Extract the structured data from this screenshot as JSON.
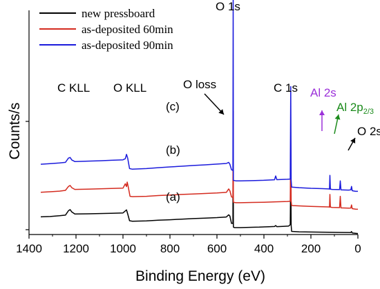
{
  "chart_data": {
    "type": "line",
    "title": "",
    "xlabel": "Binding Energy (eV)",
    "ylabel": "Counts/s",
    "xlim": [
      1400,
      0
    ],
    "x_reversed": true,
    "x_ticks": [
      1400,
      1200,
      1000,
      800,
      600,
      400,
      200,
      0
    ],
    "y_ticks_labeled": false,
    "grid": false,
    "legend_position": "top-left",
    "series": [
      {
        "name": "new pressboard",
        "color": "#000000",
        "tag": "(a)",
        "points": [
          [
            1350,
            0.143
          ],
          [
            1310,
            0.146
          ],
          [
            1270,
            0.152
          ],
          [
            1245,
            0.157
          ],
          [
            1232,
            0.193
          ],
          [
            1225,
            0.202
          ],
          [
            1218,
            0.183
          ],
          [
            1205,
            0.166
          ],
          [
            1150,
            0.168
          ],
          [
            1100,
            0.17
          ],
          [
            1050,
            0.172
          ],
          [
            1000,
            0.175
          ],
          [
            985,
            0.2
          ],
          [
            980,
            0.168
          ],
          [
            972,
            0.112
          ],
          [
            960,
            0.108
          ],
          [
            900,
            0.111
          ],
          [
            850,
            0.116
          ],
          [
            800,
            0.12
          ],
          [
            750,
            0.125
          ],
          [
            700,
            0.129
          ],
          [
            650,
            0.133
          ],
          [
            600,
            0.137
          ],
          [
            560,
            0.142
          ],
          [
            550,
            0.16
          ],
          [
            545,
            0.15
          ],
          [
            538,
            0.09
          ],
          [
            532,
            0.09
          ],
          [
            531,
            1.0
          ],
          [
            530,
            0.06
          ],
          [
            525,
            0.056
          ],
          [
            500,
            0.056
          ],
          [
            450,
            0.059
          ],
          [
            420,
            0.06
          ],
          [
            380,
            0.063
          ],
          [
            355,
            0.065
          ],
          [
            350,
            0.073
          ],
          [
            345,
            0.064
          ],
          [
            320,
            0.066
          ],
          [
            295,
            0.068
          ],
          [
            288,
            0.08
          ],
          [
            286,
            0.52
          ],
          [
            284,
            0.075
          ],
          [
            282,
            0.025
          ],
          [
            250,
            0.022
          ],
          [
            200,
            0.02
          ],
          [
            150,
            0.019
          ],
          [
            120,
            0.018
          ],
          [
            70,
            0.017
          ],
          [
            30,
            0.016
          ],
          [
            27,
            0.024
          ],
          [
            24,
            0.013
          ],
          [
            10,
            0.01
          ],
          [
            0,
            0.008
          ]
        ]
      },
      {
        "name": "as-deposited 60min",
        "color": "#d42a1e",
        "tag": "(b)",
        "points": [
          [
            1350,
            0.343
          ],
          [
            1310,
            0.347
          ],
          [
            1270,
            0.352
          ],
          [
            1245,
            0.358
          ],
          [
            1232,
            0.39
          ],
          [
            1225,
            0.398
          ],
          [
            1218,
            0.38
          ],
          [
            1205,
            0.366
          ],
          [
            1150,
            0.368
          ],
          [
            1100,
            0.371
          ],
          [
            1050,
            0.373
          ],
          [
            1000,
            0.376
          ],
          [
            990,
            0.412
          ],
          [
            985,
            0.388
          ],
          [
            982,
            0.425
          ],
          [
            978,
            0.39
          ],
          [
            970,
            0.31
          ],
          [
            960,
            0.307
          ],
          [
            900,
            0.31
          ],
          [
            850,
            0.316
          ],
          [
            800,
            0.32
          ],
          [
            750,
            0.325
          ],
          [
            700,
            0.329
          ],
          [
            650,
            0.333
          ],
          [
            600,
            0.337
          ],
          [
            560,
            0.342
          ],
          [
            550,
            0.37
          ],
          [
            545,
            0.355
          ],
          [
            538,
            0.305
          ],
          [
            532,
            0.3
          ],
          [
            531,
            1.0
          ],
          [
            530,
            0.262
          ],
          [
            520,
            0.258
          ],
          [
            500,
            0.258
          ],
          [
            450,
            0.26
          ],
          [
            400,
            0.262
          ],
          [
            350,
            0.265
          ],
          [
            300,
            0.268
          ],
          [
            288,
            0.27
          ],
          [
            286,
            0.76
          ],
          [
            284,
            0.27
          ],
          [
            282,
            0.235
          ],
          [
            250,
            0.232
          ],
          [
            200,
            0.228
          ],
          [
            150,
            0.225
          ],
          [
            125,
            0.224
          ],
          [
            121,
            0.222
          ],
          [
            119,
            0.325
          ],
          [
            117,
            0.222
          ],
          [
            110,
            0.22
          ],
          [
            78,
            0.218
          ],
          [
            75,
            0.31
          ],
          [
            72,
            0.216
          ],
          [
            40,
            0.214
          ],
          [
            30,
            0.215
          ],
          [
            27,
            0.24
          ],
          [
            24,
            0.21
          ],
          [
            10,
            0.206
          ],
          [
            0,
            0.205
          ]
        ]
      },
      {
        "name": "as-deposited 90min",
        "color": "#1a1adc",
        "tag": "(c)",
        "points": [
          [
            1350,
            0.57
          ],
          [
            1310,
            0.575
          ],
          [
            1270,
            0.58
          ],
          [
            1245,
            0.585
          ],
          [
            1232,
            0.62
          ],
          [
            1225,
            0.625
          ],
          [
            1218,
            0.605
          ],
          [
            1205,
            0.592
          ],
          [
            1150,
            0.595
          ],
          [
            1100,
            0.598
          ],
          [
            1050,
            0.602
          ],
          [
            1000,
            0.606
          ],
          [
            990,
            0.615
          ],
          [
            985,
            0.65
          ],
          [
            980,
            0.62
          ],
          [
            972,
            0.535
          ],
          [
            960,
            0.53
          ],
          [
            900,
            0.535
          ],
          [
            850,
            0.542
          ],
          [
            800,
            0.548
          ],
          [
            750,
            0.554
          ],
          [
            700,
            0.56
          ],
          [
            650,
            0.565
          ],
          [
            600,
            0.571
          ],
          [
            560,
            0.576
          ],
          [
            550,
            0.585
          ],
          [
            545,
            0.57
          ],
          [
            538,
            0.525
          ],
          [
            532,
            0.52
          ],
          [
            531,
            1.96
          ],
          [
            530,
            0.44
          ],
          [
            520,
            0.435
          ],
          [
            500,
            0.435
          ],
          [
            450,
            0.437
          ],
          [
            400,
            0.44
          ],
          [
            355,
            0.444
          ],
          [
            350,
            0.475
          ],
          [
            345,
            0.445
          ],
          [
            300,
            0.448
          ],
          [
            288,
            0.45
          ],
          [
            286,
            1.2
          ],
          [
            284,
            0.44
          ],
          [
            282,
            0.385
          ],
          [
            250,
            0.38
          ],
          [
            200,
            0.375
          ],
          [
            150,
            0.372
          ],
          [
            125,
            0.37
          ],
          [
            121,
            0.368
          ],
          [
            119,
            0.48
          ],
          [
            117,
            0.368
          ],
          [
            110,
            0.366
          ],
          [
            78,
            0.364
          ],
          [
            75,
            0.435
          ],
          [
            72,
            0.362
          ],
          [
            40,
            0.36
          ],
          [
            30,
            0.362
          ],
          [
            27,
            0.39
          ],
          [
            24,
            0.355
          ],
          [
            10,
            0.35
          ],
          [
            0,
            0.35
          ]
        ]
      }
    ],
    "annotations": [
      {
        "id": "c-kll",
        "text": "C KLL",
        "color": "#000000"
      },
      {
        "id": "o-kll",
        "text": "O KLL",
        "color": "#000000"
      },
      {
        "id": "o-loss",
        "text": "O loss",
        "color": "#000000"
      },
      {
        "id": "o-1s",
        "text": "O 1s",
        "color": "#000000"
      },
      {
        "id": "c-1s",
        "text": "C 1s",
        "color": "#000000"
      },
      {
        "id": "al-2s",
        "text": "Al 2s",
        "color": "#9b30d9"
      },
      {
        "id": "al-2p-main",
        "text": "Al 2p",
        "color": "#1a8a1a"
      },
      {
        "id": "al-2p-sub",
        "text": "2/3",
        "color": "#1a8a1a"
      },
      {
        "id": "o-2s",
        "text": "O 2s",
        "color": "#000000"
      }
    ]
  }
}
